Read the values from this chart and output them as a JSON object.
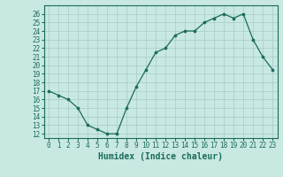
{
  "x": [
    0,
    1,
    2,
    3,
    4,
    5,
    6,
    7,
    8,
    9,
    10,
    11,
    12,
    13,
    14,
    15,
    16,
    17,
    18,
    19,
    20,
    21,
    22,
    23
  ],
  "y": [
    17,
    16.5,
    16,
    15,
    13,
    12.5,
    12,
    12,
    15,
    17.5,
    19.5,
    21.5,
    22,
    23.5,
    24,
    24,
    25,
    25.5,
    26,
    25.5,
    26,
    23,
    21,
    19.5
  ],
  "line_color": "#1a6b5a",
  "marker_color": "#1a6b5a",
  "bg_color": "#c8e8e2",
  "grid_major_color": "#a8ccc6",
  "xlabel": "Humidex (Indice chaleur)",
  "xlim": [
    -0.5,
    23.5
  ],
  "ylim": [
    11.5,
    27
  ],
  "yticks": [
    12,
    13,
    14,
    15,
    16,
    17,
    18,
    19,
    20,
    21,
    22,
    23,
    24,
    25,
    26
  ],
  "xticks": [
    0,
    1,
    2,
    3,
    4,
    5,
    6,
    7,
    8,
    9,
    10,
    11,
    12,
    13,
    14,
    15,
    16,
    17,
    18,
    19,
    20,
    21,
    22,
    23
  ],
  "tick_fontsize": 5.5,
  "xlabel_fontsize": 7
}
